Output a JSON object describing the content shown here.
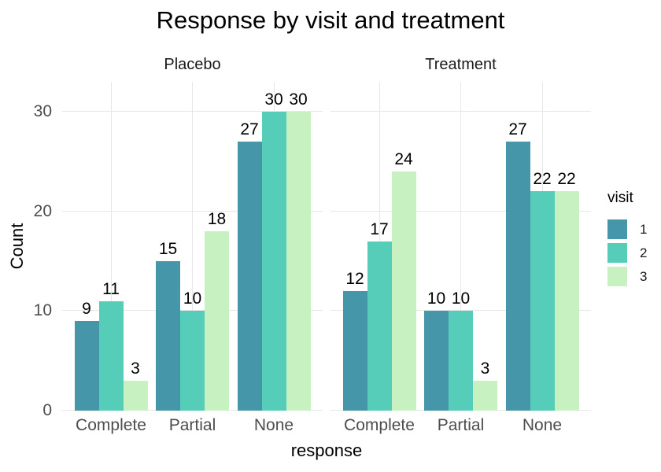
{
  "chart_data": {
    "type": "bar",
    "title": "Response by visit and treatment",
    "xlabel": "response",
    "ylabel": "Count",
    "ylim": [
      0,
      33
    ],
    "yticks": [
      0,
      10,
      20,
      30
    ],
    "categories": [
      "Complete",
      "Partial",
      "None"
    ],
    "facets": [
      {
        "label": "Placebo",
        "series": [
          {
            "name": "1",
            "values": [
              9,
              15,
              27
            ]
          },
          {
            "name": "2",
            "values": [
              11,
              10,
              30
            ]
          },
          {
            "name": "3",
            "values": [
              3,
              18,
              30
            ]
          }
        ]
      },
      {
        "label": "Treatment",
        "series": [
          {
            "name": "1",
            "values": [
              12,
              10,
              27
            ]
          },
          {
            "name": "2",
            "values": [
              17,
              10,
              22
            ]
          },
          {
            "name": "3",
            "values": [
              24,
              3,
              22
            ]
          }
        ]
      }
    ],
    "bar_value_labels": true,
    "legend": {
      "title": "visit",
      "position": "right",
      "entries": [
        "1",
        "2",
        "3"
      ]
    },
    "colors": [
      "#4596A8",
      "#55CDB9",
      "#C7F1C0"
    ],
    "style": {
      "background": "#FFFFFF",
      "grid_color": "#E7E7E7",
      "axis_text_color": "#4D4D4D",
      "strip_text_color": "#1A1A1A",
      "title_color": "#000000",
      "bar_label_color": "#000000",
      "grid": "major-only"
    }
  }
}
